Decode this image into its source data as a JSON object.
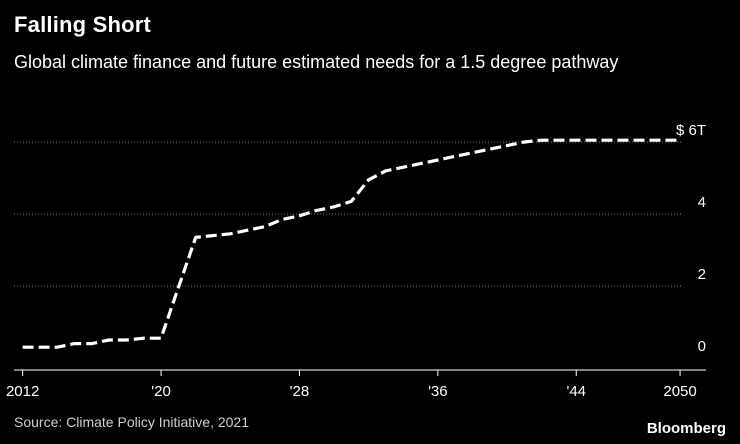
{
  "header": {
    "title": "Falling Short",
    "subtitle": "Global climate finance and future estimated needs for a 1.5 degree pathway"
  },
  "footer": {
    "source": "Source: Climate Policy Initiative, 2021",
    "brand": "Bloomberg"
  },
  "colors": {
    "background": "#000000",
    "line": "#ffffff",
    "grid": "#7a7a7a",
    "text": "#ffffff"
  },
  "chart_data": {
    "type": "line",
    "title": "Falling Short",
    "subtitle": "Global climate finance and future estimated needs for a 1.5 degree pathway",
    "xlim": [
      2011.5,
      2051.5
    ],
    "ylim": [
      0,
      6.1
    ],
    "grid": true,
    "y_ticks": [
      {
        "value": 0,
        "label": "0"
      },
      {
        "value": 2,
        "label": "2"
      },
      {
        "value": 4,
        "label": "4"
      },
      {
        "value": 6,
        "label": "$ 6T"
      }
    ],
    "x_ticks": [
      {
        "value": 2012,
        "label": "2012"
      },
      {
        "value": 2020,
        "label": "'20"
      },
      {
        "value": 2028,
        "label": "'28"
      },
      {
        "value": 2036,
        "label": "'36"
      },
      {
        "value": 2044,
        "label": "'44"
      },
      {
        "value": 2050,
        "label": "2050"
      }
    ],
    "series": [
      {
        "style": "dashed",
        "x": [
          2012,
          2013,
          2014,
          2015,
          2016,
          2017,
          2018,
          2019,
          2020,
          2021,
          2022,
          2023,
          2024,
          2025,
          2026,
          2027,
          2028,
          2029,
          2030,
          2031,
          2032,
          2033,
          2034,
          2035,
          2036,
          2037,
          2038,
          2039,
          2040,
          2041,
          2042,
          2043,
          2044,
          2045,
          2046,
          2047,
          2048,
          2049,
          2050
        ],
        "y": [
          0.3,
          0.3,
          0.3,
          0.4,
          0.4,
          0.5,
          0.5,
          0.55,
          0.55,
          1.95,
          3.35,
          3.4,
          3.45,
          3.55,
          3.65,
          3.85,
          3.95,
          4.1,
          4.2,
          4.35,
          4.95,
          5.2,
          5.3,
          5.4,
          5.5,
          5.6,
          5.7,
          5.8,
          5.9,
          6.0,
          6.05,
          6.05,
          6.05,
          6.05,
          6.05,
          6.05,
          6.05,
          6.05,
          6.05
        ]
      }
    ]
  }
}
